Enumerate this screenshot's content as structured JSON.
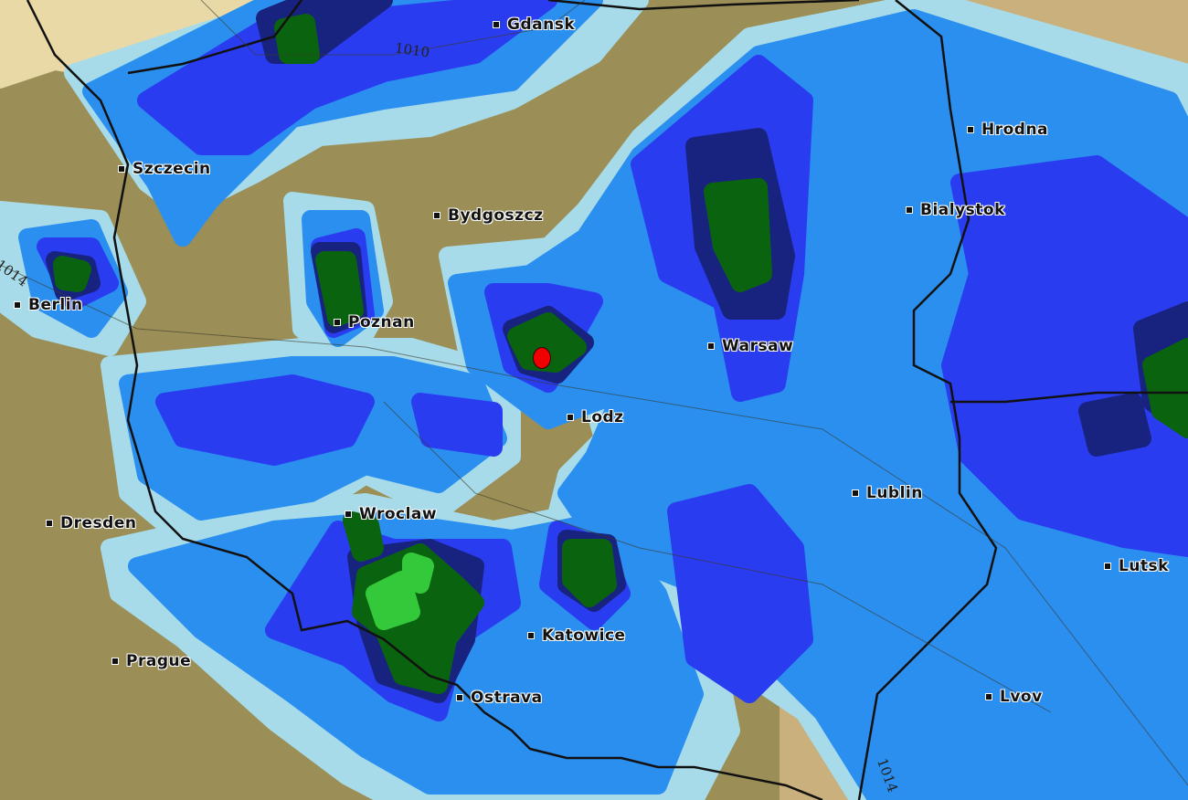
{
  "map": {
    "cities": [
      {
        "name": "Gdansk"
      },
      {
        "name": "Hrodna"
      },
      {
        "name": "Szczecin"
      },
      {
        "name": "Bydgoszcz"
      },
      {
        "name": "Bialystok"
      },
      {
        "name": "Berlin"
      },
      {
        "name": "Poznan"
      },
      {
        "name": "Warsaw"
      },
      {
        "name": "Lodz"
      },
      {
        "name": "Lublin"
      },
      {
        "name": "Dresden"
      },
      {
        "name": "Wroclaw"
      },
      {
        "name": "Lutsk"
      },
      {
        "name": "Katowice"
      },
      {
        "name": "Prague"
      },
      {
        "name": "Ostrava"
      },
      {
        "name": "Lvov"
      }
    ],
    "isobars": [
      "1010",
      "1014",
      "1014"
    ],
    "marker": "red-location-marker",
    "colors": {
      "terrain": "#9b8f57",
      "terrain_light": "#c9b07c",
      "sea": "#e9d9a6",
      "precip_light": "#a7dbe9",
      "precip_1": "#2b8ff0",
      "precip_2": "#2a3cf0",
      "precip_3": "#18237f",
      "precip_4": "#0a640f",
      "precip_5": "#34c93a",
      "marker": "#f00000"
    }
  }
}
